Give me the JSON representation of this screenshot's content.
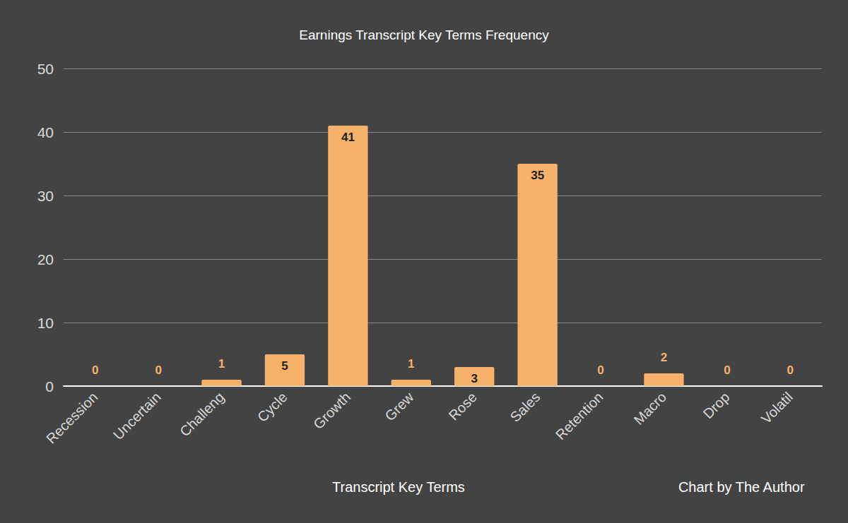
{
  "chart_data": {
    "type": "bar",
    "title": "Earnings Transcript Key Terms Frequency",
    "x_label": "Transcript Key Terms",
    "annotation": "Chart by The Author",
    "categories": [
      "Recession",
      "Uncertain",
      "Challeng",
      "Cycle",
      "Growth",
      "Grew",
      "Rose",
      "Sales",
      "Retention",
      "Macro",
      "Drop",
      "Volatil"
    ],
    "values": [
      0,
      0,
      1,
      5,
      41,
      1,
      3,
      35,
      0,
      2,
      0,
      0
    ],
    "color": "#f6b26b",
    "ylim": [
      0,
      50
    ],
    "yticks": [
      0,
      10,
      20,
      30,
      40,
      50
    ],
    "grid": true,
    "data_labels": true
  }
}
